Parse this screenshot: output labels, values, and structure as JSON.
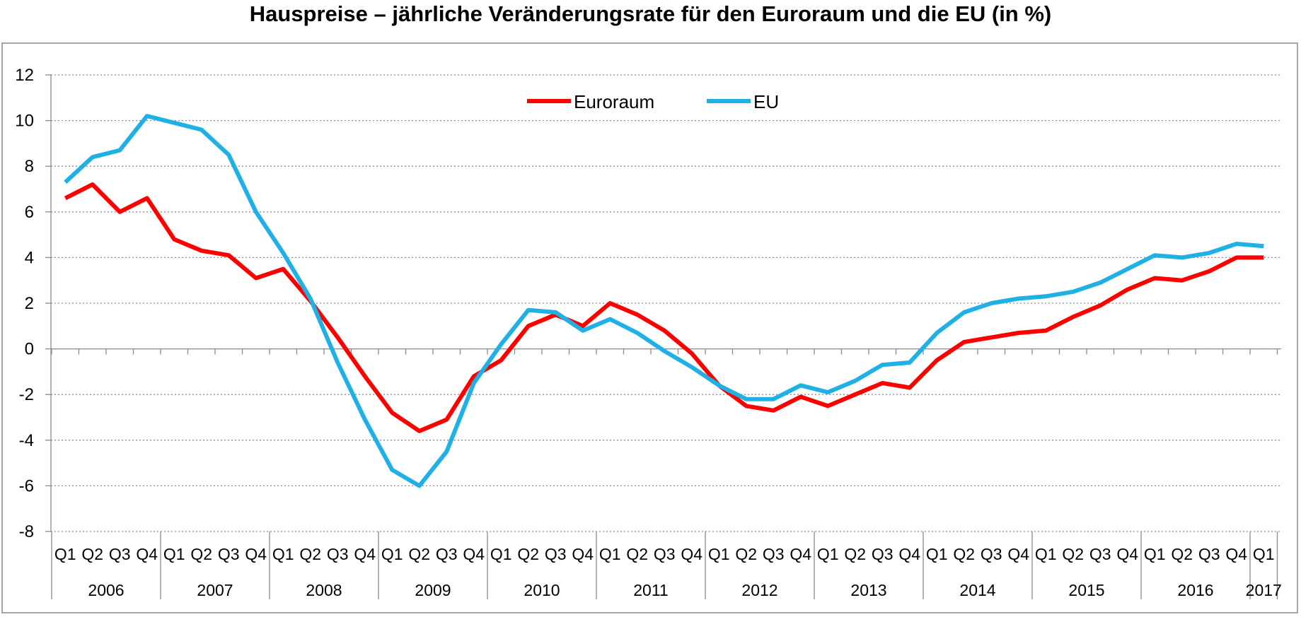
{
  "chart_data": {
    "type": "line",
    "title": "Hauspreise – jährliche Veränderungsrate für den Euroraum und die EU (in %)",
    "xlabel": "",
    "ylabel": "",
    "ylim": [
      -8,
      12
    ],
    "yticks": [
      -8,
      -6,
      -4,
      -2,
      0,
      2,
      4,
      6,
      8,
      10,
      12
    ],
    "grid": true,
    "legend_position": "top-center",
    "quarter_labels": [
      "Q1",
      "Q2",
      "Q3",
      "Q4",
      "Q1",
      "Q2",
      "Q3",
      "Q4",
      "Q1",
      "Q2",
      "Q3",
      "Q4",
      "Q1",
      "Q2",
      "Q3",
      "Q4",
      "Q1",
      "Q2",
      "Q3",
      "Q4",
      "Q1",
      "Q2",
      "Q3",
      "Q4",
      "Q1",
      "Q2",
      "Q3",
      "Q4",
      "Q1",
      "Q2",
      "Q3",
      "Q4",
      "Q1",
      "Q2",
      "Q3",
      "Q4",
      "Q1",
      "Q2",
      "Q3",
      "Q4",
      "Q1",
      "Q2",
      "Q3",
      "Q4",
      "Q1"
    ],
    "years": [
      "2006",
      "2007",
      "2008",
      "2009",
      "2010",
      "2011",
      "2012",
      "2013",
      "2014",
      "2015",
      "2016",
      "2017"
    ],
    "series": [
      {
        "name": "Euroraum",
        "color": "#ff0000",
        "values": [
          6.6,
          7.2,
          6.0,
          6.6,
          4.8,
          4.3,
          4.1,
          3.1,
          3.5,
          2.1,
          0.5,
          -1.2,
          -2.8,
          -3.6,
          -3.1,
          -1.2,
          -0.5,
          1.0,
          1.5,
          1.0,
          2.0,
          1.5,
          0.8,
          -0.2,
          -1.6,
          -2.5,
          -2.7,
          -2.1,
          -2.5,
          -2.0,
          -1.5,
          -1.7,
          -0.5,
          0.3,
          0.5,
          0.7,
          0.8,
          1.4,
          1.9,
          2.6,
          3.1,
          3.0,
          3.4,
          4.0,
          4.0
        ]
      },
      {
        "name": "EU",
        "color": "#1fb1e6",
        "values": [
          7.3,
          8.4,
          8.7,
          10.2,
          9.9,
          9.6,
          8.5,
          6.0,
          4.2,
          2.2,
          -0.6,
          -3.1,
          -5.3,
          -6.0,
          -4.5,
          -1.5,
          0.2,
          1.7,
          1.6,
          0.8,
          1.3,
          0.7,
          -0.1,
          -0.8,
          -1.6,
          -2.2,
          -2.2,
          -1.6,
          -1.9,
          -1.4,
          -0.7,
          -0.6,
          0.7,
          1.6,
          2.0,
          2.2,
          2.3,
          2.5,
          2.9,
          3.5,
          4.1,
          4.0,
          4.2,
          4.6,
          4.5
        ]
      }
    ]
  }
}
